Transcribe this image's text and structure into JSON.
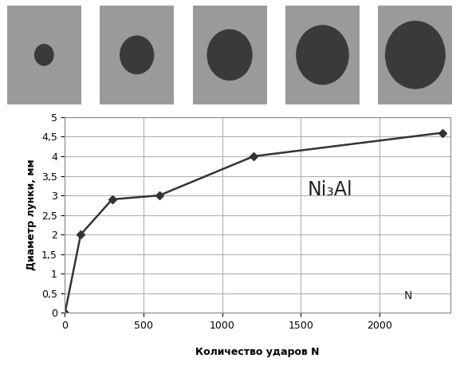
{
  "chart_data": {
    "type": "line",
    "x_label": "Количество ударов N",
    "y_label": "Диаметр лунки, мм",
    "annotations": [
      "Ni₃Al",
      "N"
    ],
    "x": [
      0,
      100,
      300,
      600,
      1200,
      2400
    ],
    "values": [
      0,
      2,
      2.9,
      3.0,
      4.0,
      4.6
    ],
    "color": "#333333",
    "marker": "diamond",
    "line_style": "solid",
    "xlim": [
      0,
      2450
    ],
    "xticks": [
      0,
      500,
      1000,
      1500,
      2000
    ],
    "ylim": [
      0,
      5
    ],
    "yticks": [
      0,
      {
        "value": 0.5,
        "label": "0,5"
      },
      1,
      {
        "value": 1.5,
        "label": "1,5"
      },
      2,
      {
        "value": 2.5,
        "label": "2,5"
      },
      3,
      {
        "value": 3.5,
        "label": "3,5"
      },
      4,
      {
        "value": 4.5,
        "label": "4,5"
      },
      5
    ],
    "grid": true
  }
}
